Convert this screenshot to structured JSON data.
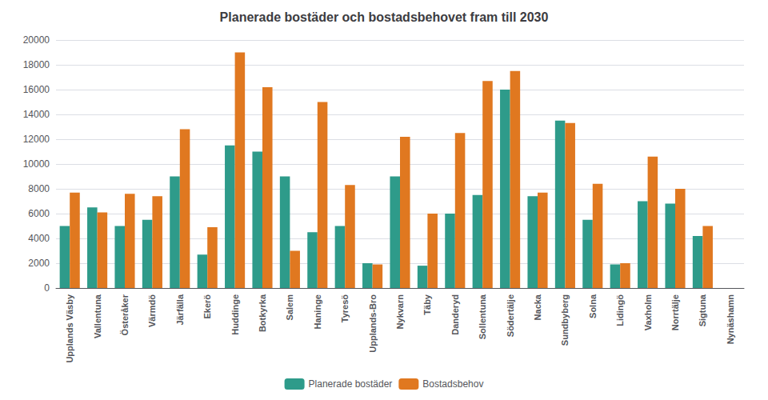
{
  "chart_data": {
    "type": "bar",
    "title": "Planerade bostäder och bostadsbehovet fram till 2030",
    "categories": [
      "Upplands Väsby",
      "Vallentuna",
      "Österåker",
      "Värmdö",
      "Järfälla",
      "Ekerö",
      "Huddinge",
      "Botkyrka",
      "Salem",
      "Haninge",
      "Tyresö",
      "Upplands-Bro",
      "Nykvarn",
      "Täby",
      "Danderyd",
      "Sollentuna",
      "Södertälje",
      "Nacka",
      "Sundbyberg",
      "Solna",
      "Lidingö",
      "Vaxholm",
      "Norrtälje",
      "Sigtuna",
      "Nynäshamn"
    ],
    "series": [
      {
        "name": "Planerade bostäder",
        "color": "#2e9b8a",
        "values": [
          5000,
          6500,
          5000,
          5500,
          9000,
          2700,
          11500,
          11000,
          9000,
          4500,
          5000,
          2000,
          9000,
          1800,
          6000,
          7500,
          16000,
          7400,
          13500,
          5500,
          1900,
          7000,
          6800,
          4200,
          0
        ]
      },
      {
        "name": "Bostadsbehov",
        "color": "#e07820",
        "values": [
          7700,
          6100,
          7600,
          7400,
          12800,
          4900,
          19000,
          16200,
          3000,
          15000,
          8300,
          1900,
          12200,
          6000,
          12500,
          16700,
          17500,
          7700,
          13300,
          8400,
          2000,
          10600,
          8000,
          5000,
          0
        ]
      }
    ],
    "ylim": [
      0,
      20000
    ],
    "yticks": [
      0,
      2000,
      4000,
      6000,
      8000,
      10000,
      12000,
      14000,
      16000,
      18000,
      20000
    ],
    "grid": true,
    "legend": "bottom"
  }
}
